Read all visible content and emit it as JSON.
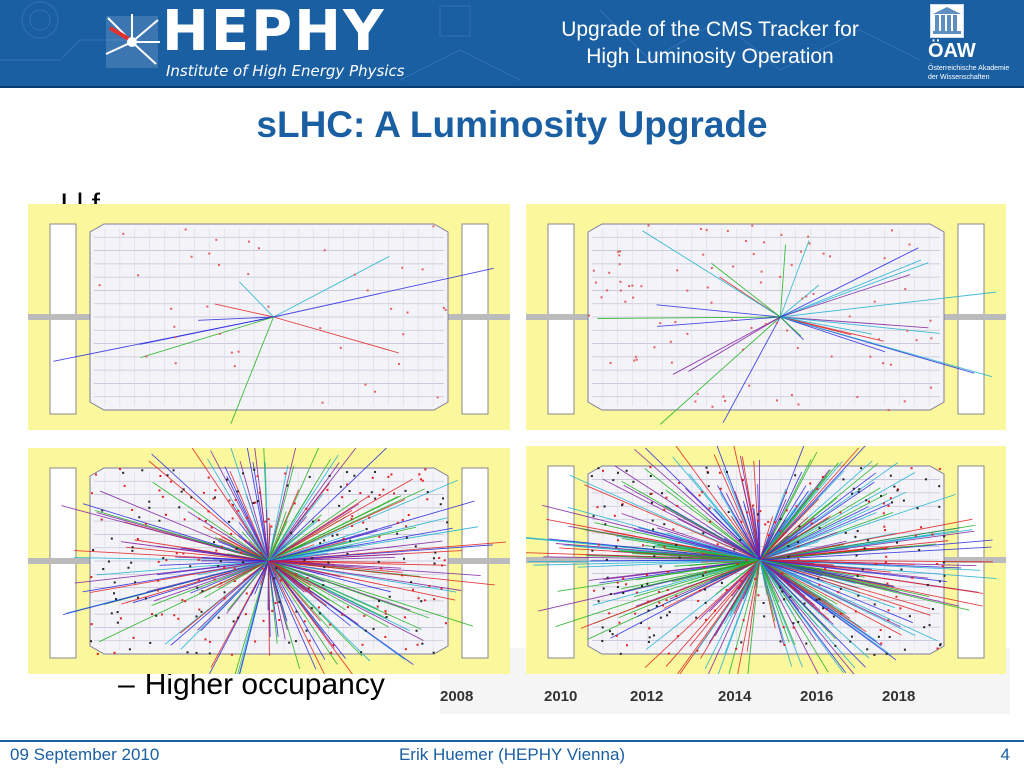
{
  "header": {
    "logo_text": "HEPHY",
    "logo_subtitle": "Institute of High Energy Physics",
    "title_line1": "Upgrade of the CMS Tracker for",
    "title_line2": "High Luminosity Operation",
    "academy_logo_text": "ÖAW",
    "academy_name_line1": "Österreichische Akademie",
    "academy_name_line2": "der Wissenschaften"
  },
  "slide": {
    "title": "sLHC: A Luminosity Upgrade",
    "bullet_subitem": "Higher occupancy",
    "obscured_text": "I                      l   f"
  },
  "event_displays": [
    {
      "name": "low-pileup-event-1",
      "density": "low"
    },
    {
      "name": "low-pileup-event-2",
      "density": "medium"
    },
    {
      "name": "high-pileup-event-1",
      "density": "high"
    },
    {
      "name": "high-pileup-event-2",
      "density": "very-high"
    }
  ],
  "timeline": {
    "years": [
      "2008",
      "2010",
      "2012",
      "2014",
      "2016",
      "2018"
    ]
  },
  "footer": {
    "date": "09 September 2010",
    "author": "Erik Huemer (HEPHY Vienna)",
    "page": "4"
  },
  "colors": {
    "brand_blue": "#1b5fa3",
    "panel_yellow": "#fbf79c"
  }
}
